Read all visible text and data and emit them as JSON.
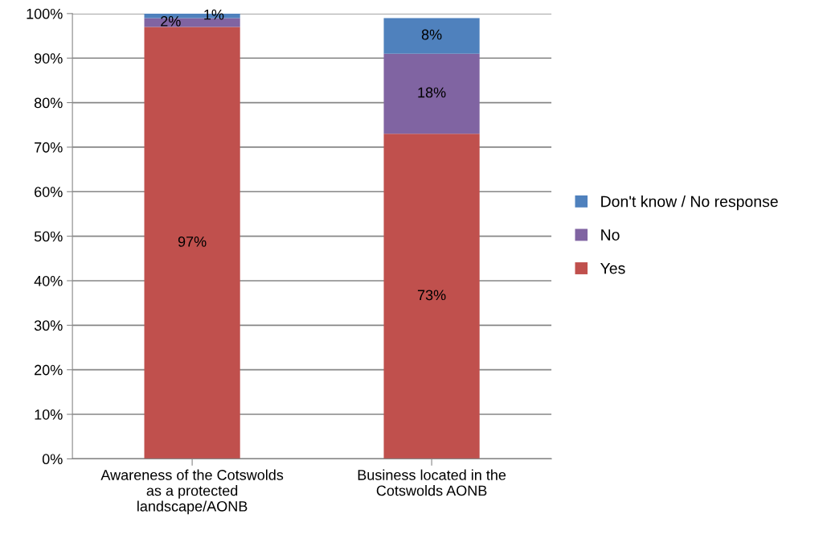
{
  "chart_data": {
    "type": "bar",
    "stacked": true,
    "categories": [
      "Awareness of the Cotswolds\nas a protected\nlandscape/AONB",
      "Business located in the\nCotswolds AONB"
    ],
    "series": [
      {
        "name": "Yes",
        "color": "#c0504d",
        "values": [
          97,
          73
        ],
        "value_labels": [
          "97%",
          "73%"
        ]
      },
      {
        "name": "No",
        "color": "#8064a2",
        "values": [
          2,
          18
        ],
        "value_labels": [
          "2%",
          "18%"
        ]
      },
      {
        "name": "Don't know / No response",
        "color": "#4f81bd",
        "values": [
          1,
          8
        ],
        "value_labels": [
          "1%",
          "8%"
        ]
      }
    ],
    "ylim": [
      0,
      100
    ],
    "yticks": [
      {
        "value": 0,
        "label": "0%"
      },
      {
        "value": 10,
        "label": "10%"
      },
      {
        "value": 20,
        "label": "20%"
      },
      {
        "value": 30,
        "label": "30%"
      },
      {
        "value": 40,
        "label": "40%"
      },
      {
        "value": 50,
        "label": "50%"
      },
      {
        "value": 60,
        "label": "60%"
      },
      {
        "value": 70,
        "label": "70%"
      },
      {
        "value": 80,
        "label": "80%"
      },
      {
        "value": 90,
        "label": "90%"
      },
      {
        "value": 100,
        "label": "100%"
      }
    ],
    "grid": "y",
    "legend": "right"
  }
}
